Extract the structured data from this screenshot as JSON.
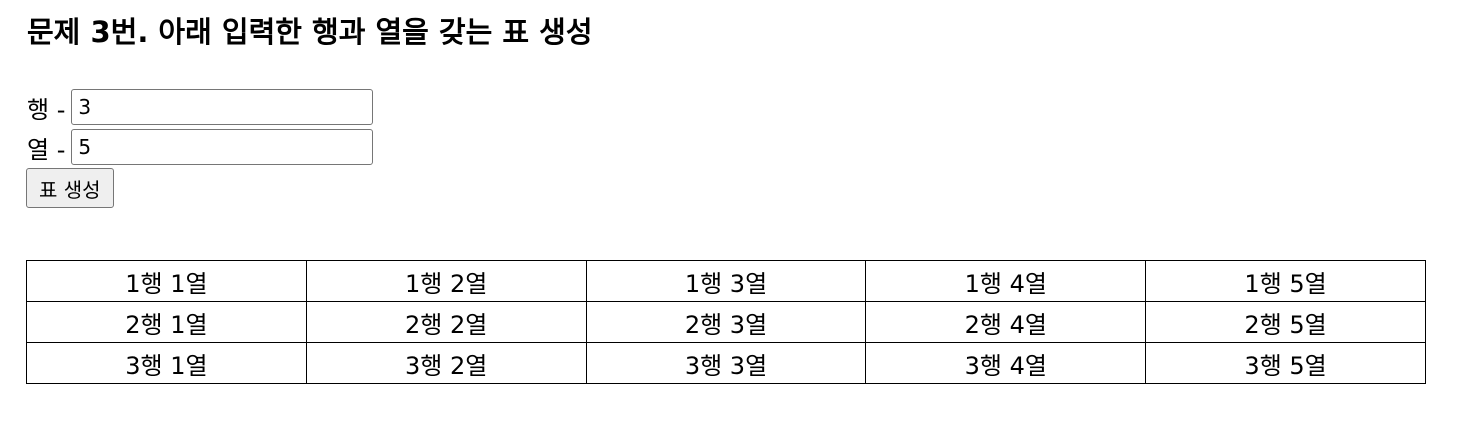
{
  "page": {
    "title": "문제 3번. 아래 입력한 행과 열을 갖는 표 생성"
  },
  "form": {
    "rows_label": "행 -",
    "rows_value": "3",
    "cols_label": "열 -",
    "cols_value": "5",
    "generate_label": "표 생성"
  },
  "table": {
    "rows": [
      [
        "1행 1열",
        "1행 2열",
        "1행 3열",
        "1행 4열",
        "1행 5열"
      ],
      [
        "2행 1열",
        "2행 2열",
        "2행 3열",
        "2행 4열",
        "2행 5열"
      ],
      [
        "3행 1열",
        "3행 2열",
        "3행 3열",
        "3행 4열",
        "3행 5열"
      ]
    ]
  }
}
